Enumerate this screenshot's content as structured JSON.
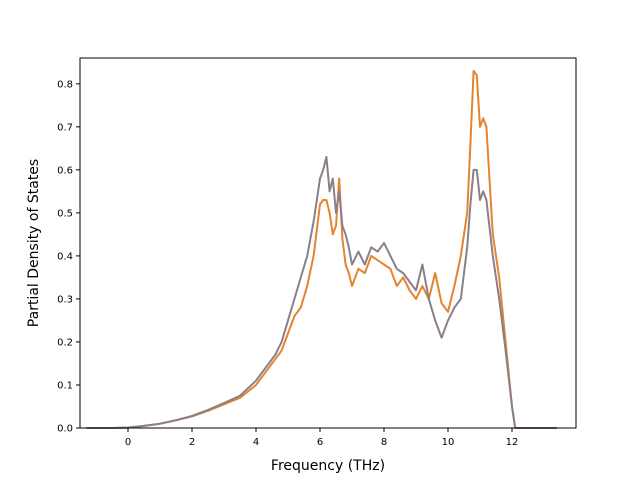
{
  "chart_data": {
    "type": "line",
    "title": "",
    "xlabel": "Frequency (THz)",
    "ylabel": "Partial Density of States",
    "xlim": [
      -1.5,
      14.0
    ],
    "ylim": [
      0.0,
      0.86
    ],
    "xticks": [
      0,
      2,
      4,
      6,
      8,
      10,
      12
    ],
    "xtick_labels": [
      "0",
      "2",
      "4",
      "6",
      "8",
      "10",
      "12"
    ],
    "yticks": [
      0.0,
      0.1,
      0.2,
      0.3,
      0.4,
      0.5,
      0.6,
      0.7,
      0.8
    ],
    "ytick_labels": [
      "0.0",
      "0.1",
      "0.2",
      "0.3",
      "0.4",
      "0.5",
      "0.6",
      "0.7",
      "0.8"
    ],
    "grid": false,
    "legend": "none",
    "series": [
      {
        "color": "#e6832e",
        "x": [
          -1.3,
          -0.5,
          0.0,
          0.5,
          1.0,
          1.5,
          2.0,
          2.5,
          3.0,
          3.5,
          4.0,
          4.3,
          4.6,
          4.8,
          5.0,
          5.2,
          5.4,
          5.6,
          5.8,
          6.0,
          6.1,
          6.2,
          6.3,
          6.4,
          6.5,
          6.6,
          6.7,
          6.8,
          6.9,
          7.0,
          7.2,
          7.4,
          7.6,
          7.8,
          8.0,
          8.2,
          8.4,
          8.6,
          8.8,
          9.0,
          9.2,
          9.4,
          9.6,
          9.8,
          10.0,
          10.2,
          10.4,
          10.6,
          10.7,
          10.8,
          10.9,
          11.0,
          11.1,
          11.2,
          11.4,
          11.6,
          11.8,
          12.0,
          12.1,
          12.2,
          13.4
        ],
        "y": [
          0.0,
          0.0,
          0.001,
          0.005,
          0.01,
          0.018,
          0.027,
          0.04,
          0.055,
          0.07,
          0.1,
          0.13,
          0.16,
          0.18,
          0.22,
          0.26,
          0.28,
          0.33,
          0.4,
          0.52,
          0.53,
          0.53,
          0.5,
          0.45,
          0.47,
          0.58,
          0.44,
          0.38,
          0.36,
          0.33,
          0.37,
          0.36,
          0.4,
          0.39,
          0.38,
          0.37,
          0.33,
          0.35,
          0.32,
          0.3,
          0.33,
          0.3,
          0.36,
          0.29,
          0.27,
          0.33,
          0.4,
          0.5,
          0.66,
          0.83,
          0.82,
          0.7,
          0.72,
          0.7,
          0.45,
          0.35,
          0.2,
          0.05,
          0.0,
          0.0,
          0.0
        ]
      },
      {
        "color": "#8b7f88",
        "x": [
          -1.3,
          -0.5,
          0.0,
          0.5,
          1.0,
          1.5,
          2.0,
          2.5,
          3.0,
          3.5,
          4.0,
          4.3,
          4.6,
          4.8,
          5.0,
          5.2,
          5.4,
          5.6,
          5.8,
          6.0,
          6.1,
          6.2,
          6.3,
          6.4,
          6.5,
          6.6,
          6.7,
          6.8,
          6.9,
          7.0,
          7.2,
          7.4,
          7.6,
          7.8,
          8.0,
          8.2,
          8.4,
          8.6,
          8.8,
          9.0,
          9.2,
          9.4,
          9.6,
          9.8,
          10.0,
          10.2,
          10.4,
          10.6,
          10.7,
          10.8,
          10.9,
          11.0,
          11.1,
          11.2,
          11.4,
          11.6,
          11.8,
          12.0,
          12.1,
          12.2,
          13.4
        ],
        "y": [
          0.0,
          0.0,
          0.001,
          0.005,
          0.01,
          0.018,
          0.028,
          0.042,
          0.058,
          0.075,
          0.11,
          0.14,
          0.17,
          0.2,
          0.25,
          0.3,
          0.35,
          0.4,
          0.48,
          0.58,
          0.6,
          0.63,
          0.55,
          0.58,
          0.5,
          0.55,
          0.47,
          0.45,
          0.42,
          0.38,
          0.41,
          0.38,
          0.42,
          0.41,
          0.43,
          0.4,
          0.37,
          0.36,
          0.34,
          0.32,
          0.38,
          0.3,
          0.25,
          0.21,
          0.25,
          0.28,
          0.3,
          0.42,
          0.52,
          0.6,
          0.6,
          0.53,
          0.55,
          0.53,
          0.4,
          0.3,
          0.18,
          0.05,
          0.0,
          0.0,
          0.0
        ]
      }
    ]
  }
}
